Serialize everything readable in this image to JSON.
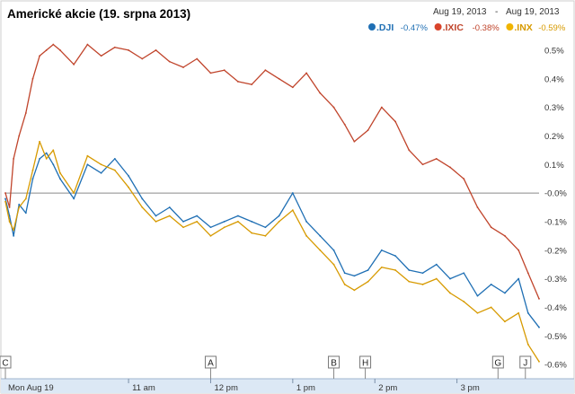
{
  "header": {
    "title": "Americké akcie (19. srpna 2013)",
    "range_start": "Aug 19, 2013",
    "range_sep": "-",
    "range_end": "Aug 19, 2013"
  },
  "legend": [
    {
      "symbol": ".DJI",
      "change": "-0.47%",
      "color": "#1f6fb4",
      "dot": "#1f6fb4"
    },
    {
      "symbol": ".IXIC",
      "change": "-0.38%",
      "color": "#c0442b",
      "dot": "#d9442b"
    },
    {
      "symbol": ".INX",
      "change": "-0.59%",
      "color": "#d79a00",
      "dot": "#f0b400"
    }
  ],
  "flags": [
    {
      "label": "C",
      "at": "09:30"
    },
    {
      "label": "A",
      "at": "12:00"
    },
    {
      "label": "B",
      "at": "13:30"
    },
    {
      "label": "H",
      "at": "13:53"
    },
    {
      "label": "G",
      "at": "15:30"
    },
    {
      "label": "J",
      "at": "15:50"
    }
  ],
  "chart_data": {
    "type": "line",
    "title": "Americké akcie (19. srpna 2013)",
    "xlabel": "",
    "ylabel": "",
    "x_range": [
      "09:30",
      "16:00"
    ],
    "ylim": [
      -0.65,
      0.55
    ],
    "ytick_values": [
      0.5,
      0.4,
      0.3,
      0.2,
      0.1,
      0.0,
      -0.1,
      -0.2,
      -0.3,
      -0.4,
      -0.5,
      -0.6
    ],
    "ytick_labels": [
      "0.5%",
      "0.4%",
      "0.3%",
      "0.2%",
      "0.1%",
      "-0.0%",
      "-0.1%",
      "-0.2%",
      "-0.3%",
      "-0.4%",
      "-0.5%",
      "-0.6%"
    ],
    "xtick_values": [
      "09:30",
      "11:00",
      "12:00",
      "13:00",
      "14:00",
      "15:00"
    ],
    "xtick_labels": [
      "Mon Aug 19",
      "11 am",
      "12 pm",
      "1 pm",
      "2 pm",
      "3 pm"
    ],
    "grid": false,
    "legend_position": "top-right",
    "series": [
      {
        "name": ".IXIC",
        "color": "#c0442b",
        "x": [
          "09:30",
          "09:33",
          "09:36",
          "09:40",
          "09:45",
          "09:50",
          "09:55",
          "10:00",
          "10:05",
          "10:10",
          "10:20",
          "10:30",
          "10:40",
          "10:50",
          "11:00",
          "11:10",
          "11:20",
          "11:30",
          "11:40",
          "11:50",
          "12:00",
          "12:10",
          "12:20",
          "12:30",
          "12:40",
          "12:50",
          "13:00",
          "13:10",
          "13:20",
          "13:30",
          "13:38",
          "13:45",
          "13:55",
          "14:05",
          "14:15",
          "14:25",
          "14:35",
          "14:45",
          "14:55",
          "15:05",
          "15:15",
          "15:25",
          "15:35",
          "15:45",
          "15:52",
          "16:00"
        ],
        "values": [
          0.0,
          -0.05,
          0.12,
          0.2,
          0.28,
          0.4,
          0.48,
          0.5,
          0.52,
          0.5,
          0.45,
          0.52,
          0.48,
          0.51,
          0.5,
          0.47,
          0.5,
          0.46,
          0.44,
          0.47,
          0.42,
          0.43,
          0.39,
          0.38,
          0.43,
          0.4,
          0.37,
          0.42,
          0.35,
          0.3,
          0.24,
          0.18,
          0.22,
          0.3,
          0.25,
          0.15,
          0.1,
          0.12,
          0.09,
          0.05,
          -0.05,
          -0.12,
          -0.15,
          -0.2,
          -0.28,
          -0.37
        ]
      },
      {
        "name": ".DJI",
        "color": "#1f6fb4",
        "x": [
          "09:30",
          "09:33",
          "09:36",
          "09:40",
          "09:45",
          "09:50",
          "09:55",
          "10:00",
          "10:05",
          "10:10",
          "10:20",
          "10:30",
          "10:40",
          "10:50",
          "11:00",
          "11:10",
          "11:20",
          "11:30",
          "11:40",
          "11:50",
          "12:00",
          "12:10",
          "12:20",
          "12:30",
          "12:40",
          "12:50",
          "13:00",
          "13:10",
          "13:20",
          "13:30",
          "13:38",
          "13:45",
          "13:55",
          "14:05",
          "14:15",
          "14:25",
          "14:35",
          "14:45",
          "14:55",
          "15:05",
          "15:15",
          "15:25",
          "15:35",
          "15:45",
          "15:52",
          "16:00"
        ],
        "values": [
          -0.02,
          -0.08,
          -0.15,
          -0.04,
          -0.07,
          0.05,
          0.12,
          0.14,
          0.1,
          0.05,
          -0.02,
          0.1,
          0.07,
          0.12,
          0.06,
          -0.02,
          -0.08,
          -0.05,
          -0.1,
          -0.08,
          -0.12,
          -0.1,
          -0.08,
          -0.1,
          -0.12,
          -0.08,
          0.0,
          -0.1,
          -0.15,
          -0.2,
          -0.28,
          -0.29,
          -0.27,
          -0.2,
          -0.22,
          -0.27,
          -0.28,
          -0.25,
          -0.3,
          -0.28,
          -0.36,
          -0.32,
          -0.35,
          -0.3,
          -0.42,
          -0.47
        ]
      },
      {
        "name": ".INX",
        "color": "#d79a00",
        "x": [
          "09:30",
          "09:33",
          "09:36",
          "09:40",
          "09:45",
          "09:50",
          "09:55",
          "10:00",
          "10:05",
          "10:10",
          "10:20",
          "10:30",
          "10:40",
          "10:50",
          "11:00",
          "11:10",
          "11:20",
          "11:30",
          "11:40",
          "11:50",
          "12:00",
          "12:10",
          "12:20",
          "12:30",
          "12:40",
          "12:50",
          "13:00",
          "13:10",
          "13:20",
          "13:30",
          "13:38",
          "13:45",
          "13:55",
          "14:05",
          "14:15",
          "14:25",
          "14:35",
          "14:45",
          "14:55",
          "15:05",
          "15:15",
          "15:25",
          "15:35",
          "15:45",
          "15:52",
          "16:00"
        ],
        "values": [
          -0.03,
          -0.1,
          -0.13,
          -0.05,
          -0.02,
          0.08,
          0.18,
          0.12,
          0.15,
          0.07,
          0.0,
          0.13,
          0.1,
          0.08,
          0.02,
          -0.05,
          -0.1,
          -0.08,
          -0.12,
          -0.1,
          -0.15,
          -0.12,
          -0.1,
          -0.14,
          -0.15,
          -0.1,
          -0.06,
          -0.15,
          -0.2,
          -0.25,
          -0.32,
          -0.34,
          -0.31,
          -0.26,
          -0.27,
          -0.31,
          -0.32,
          -0.3,
          -0.35,
          -0.38,
          -0.42,
          -0.4,
          -0.45,
          -0.42,
          -0.53,
          -0.59
        ]
      }
    ]
  }
}
